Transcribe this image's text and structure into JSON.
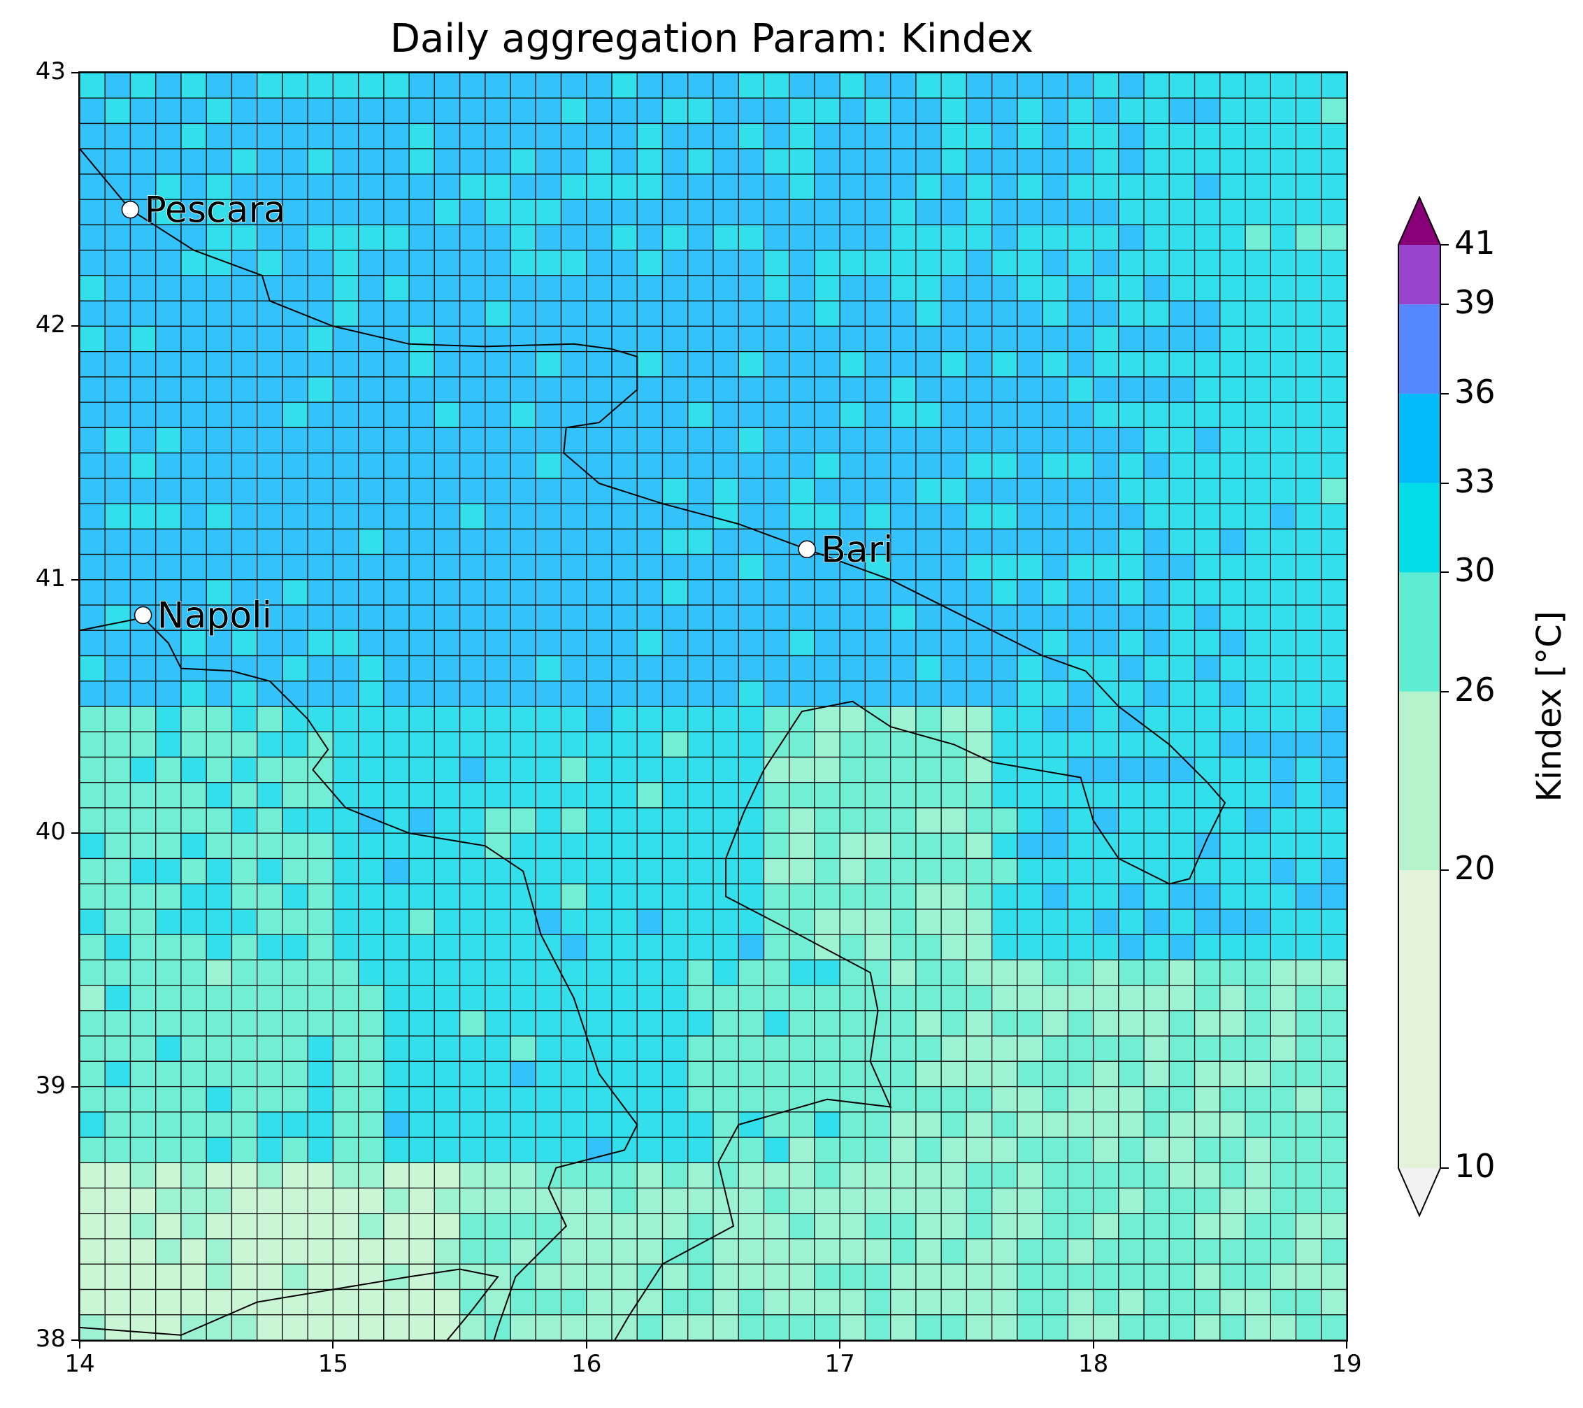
{
  "title": "Daily aggregation Param: Kindex",
  "map": {
    "lon_range": [
      14,
      19
    ],
    "lat_range": [
      38,
      43
    ],
    "x_ticks": [
      "14",
      "15",
      "16",
      "17",
      "18",
      "19"
    ],
    "y_ticks": [
      "43",
      "42",
      "41",
      "40",
      "39",
      "38"
    ],
    "grid_resolution_deg": 0.1,
    "cities": [
      {
        "name": "Pescara",
        "lon": 14.2,
        "lat": 42.46
      },
      {
        "name": "Bari",
        "lon": 16.87,
        "lat": 41.12
      },
      {
        "name": "Napoli",
        "lon": 14.25,
        "lat": 40.86
      }
    ]
  },
  "colorbar": {
    "label": "Kindex [°C]",
    "ticks": [
      "10",
      "20",
      "26",
      "30",
      "33",
      "36",
      "39",
      "41"
    ],
    "levels": [
      10,
      20,
      26,
      30,
      33,
      36,
      39,
      41
    ],
    "colors": [
      "#e3f2d8",
      "#b4f2cc",
      "#5eecd2",
      "#00dde6",
      "#00bbf8",
      "#5588ff",
      "#9944cc"
    ],
    "under_color": "#f2f2f2",
    "over_color": "#880077",
    "extend": "both"
  },
  "cell_colors": {
    "deep_blue": "#33c2fa",
    "cyan": "#33dfea",
    "aqua": "#72eed4",
    "mint": "#9ef2d4",
    "pale": "#caf6d6",
    "periwinkle": "#77a0ff"
  },
  "chart_data": {
    "type": "heatmap",
    "title": "Daily aggregation Param: Kindex",
    "xlabel": "",
    "ylabel": "",
    "x_range": [
      14,
      19
    ],
    "y_range": [
      38,
      43
    ],
    "value_label": "Kindex [°C]",
    "color_levels": [
      10,
      20,
      26,
      30,
      33,
      36,
      39,
      41
    ],
    "regions": [
      {
        "area": "Adriatic Sea and north (lat 40.5-43)",
        "value_approx": 34
      },
      {
        "area": "Gulf of Taranto / Ionian (lat 39.5-40.5)",
        "value_approx": 31
      },
      {
        "area": "Southern Calabria / Ionian south (lat 38-39.5)",
        "value_approx": 27
      },
      {
        "area": "Tyrrhenian south-west near 14-15.5, 38-38.6",
        "value_approx": 24
      },
      {
        "area": "Isolated maxima (e.g. 15.15,40.75; 18.95,41.65; 18.3,40.45)",
        "value_approx": 37
      }
    ]
  }
}
